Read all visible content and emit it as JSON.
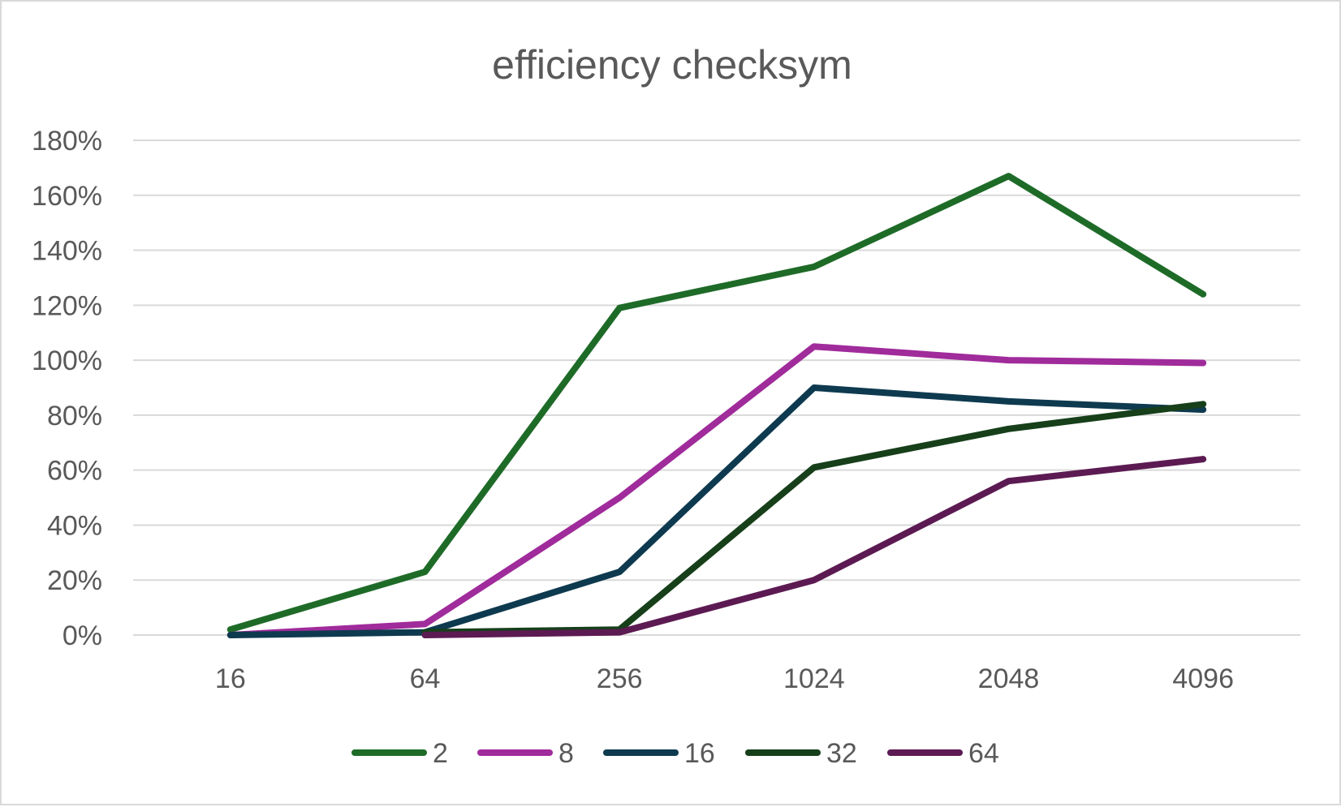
{
  "chart_data": {
    "type": "line",
    "title": "efficiency checksym",
    "xlabel": "",
    "ylabel": "",
    "categories": [
      "16",
      "64",
      "256",
      "1024",
      "2048",
      "4096"
    ],
    "y_ticks": [
      "0%",
      "20%",
      "40%",
      "60%",
      "80%",
      "100%",
      "120%",
      "140%",
      "160%",
      "180%"
    ],
    "ylim": [
      0,
      180
    ],
    "grid": true,
    "legend_position": "bottom",
    "series": [
      {
        "name": "2",
        "color": "#1e6b28",
        "values": [
          2,
          23,
          119,
          134,
          167,
          124
        ]
      },
      {
        "name": "8",
        "color": "#a02b9b",
        "values": [
          0,
          4,
          50,
          105,
          100,
          99
        ]
      },
      {
        "name": "16",
        "color": "#0e3a4f",
        "values": [
          0,
          1,
          23,
          90,
          85,
          82
        ]
      },
      {
        "name": "32",
        "color": "#163f1a",
        "values": [
          null,
          1,
          2,
          61,
          75,
          84
        ]
      },
      {
        "name": "64",
        "color": "#5c1a52",
        "values": [
          null,
          0,
          1,
          20,
          56,
          64
        ]
      }
    ]
  }
}
